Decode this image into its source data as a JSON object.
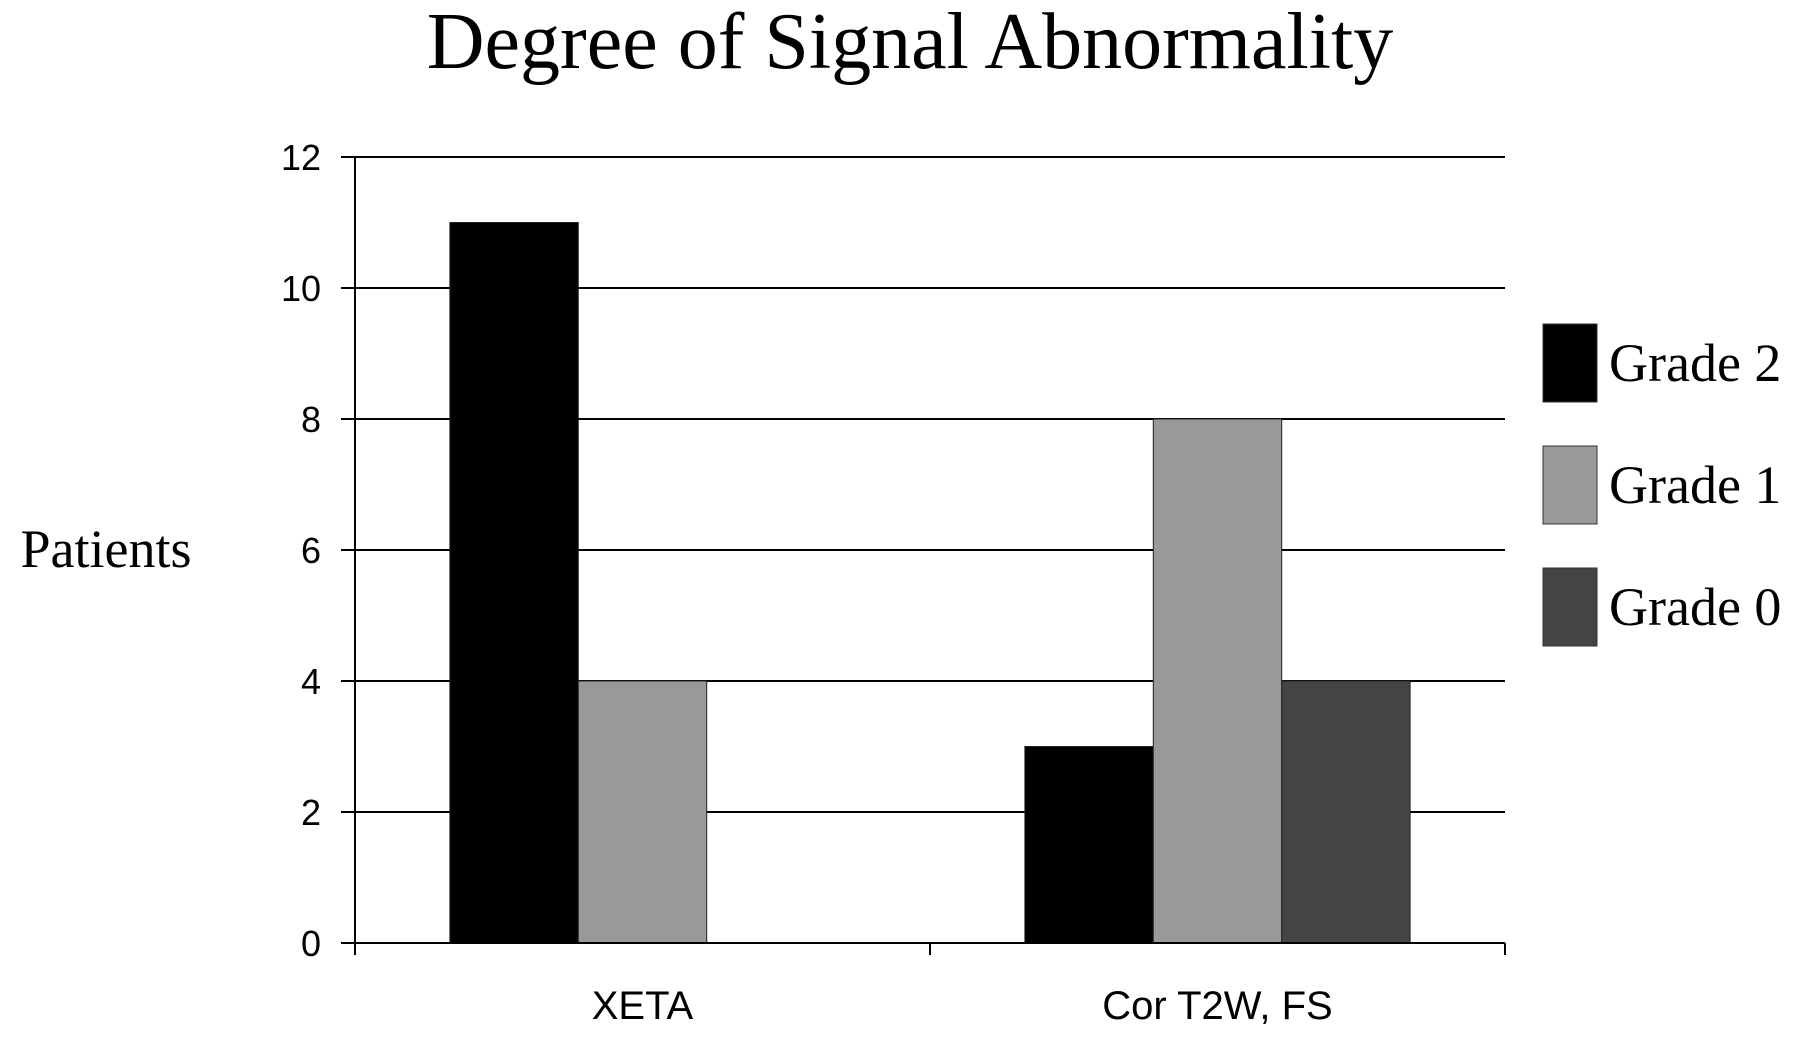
{
  "chart_data": {
    "type": "bar",
    "title": "Degree of Signal Abnormality",
    "xlabel": "",
    "ylabel": "Patients",
    "categories": [
      "XETA",
      "Cor T2W, FS"
    ],
    "series": [
      {
        "name": "Grade 2",
        "values": [
          11,
          3
        ],
        "color": "#000000"
      },
      {
        "name": "Grade 1",
        "values": [
          4,
          8
        ],
        "color": "#999999"
      },
      {
        "name": "Grade 0",
        "values": [
          0,
          4
        ],
        "color": "#444444"
      }
    ],
    "ylim": [
      0,
      12
    ],
    "yticks": [
      0,
      2,
      4,
      6,
      8,
      10,
      12
    ],
    "grid": true,
    "legend_position": "right"
  }
}
